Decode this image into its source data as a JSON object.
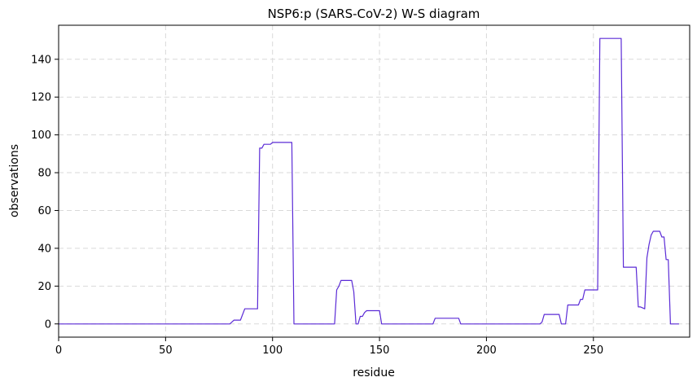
{
  "chart_data": {
    "type": "line",
    "title": "NSP6:p (SARS-CoV-2) W-S diagram",
    "xlabel": "residue",
    "ylabel": "observations",
    "xlim": [
      0,
      295
    ],
    "ylim": [
      -7,
      158
    ],
    "xticks": [
      0,
      50,
      100,
      150,
      200,
      250
    ],
    "yticks": [
      0,
      20,
      40,
      60,
      80,
      100,
      120,
      140
    ],
    "grid": true,
    "line_color": "#5b2bd6",
    "series": [
      {
        "x": [
          0,
          80,
          82,
          85,
          87,
          93,
          94,
          95,
          96,
          99,
          100,
          109,
          110,
          129,
          130,
          131,
          132,
          137,
          138,
          139,
          140,
          141,
          142,
          143,
          144,
          150,
          151,
          175,
          176,
          187,
          188,
          225,
          226,
          227,
          228,
          234,
          235,
          237,
          238,
          243,
          244,
          245,
          246,
          252,
          253,
          263,
          264,
          270,
          271,
          272,
          274,
          275,
          276,
          277,
          278,
          279,
          281,
          282,
          283,
          284,
          285,
          286,
          290
        ],
        "y": [
          0,
          0,
          2,
          2,
          8,
          8,
          93,
          93,
          95,
          95,
          96,
          96,
          0,
          0,
          18,
          20,
          23,
          23,
          17,
          0,
          0,
          4,
          4,
          6,
          7,
          7,
          0,
          0,
          3,
          3,
          0,
          0,
          1,
          5,
          5,
          5,
          0,
          0,
          10,
          10,
          13,
          13,
          18,
          18,
          151,
          151,
          30,
          30,
          9,
          9,
          8,
          35,
          42,
          47,
          49,
          49,
          49,
          46,
          46,
          34,
          34,
          0,
          0
        ]
      }
    ]
  }
}
